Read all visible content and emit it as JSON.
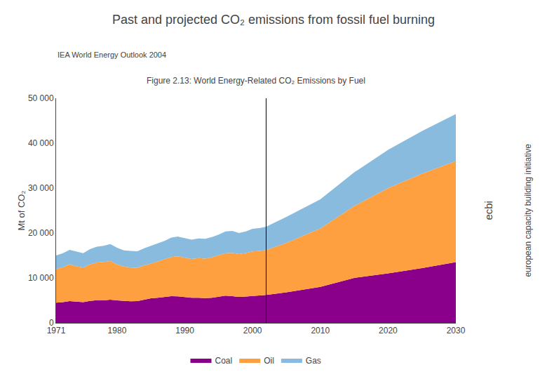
{
  "chart_data": {
    "type": "area",
    "stacked": true,
    "title": "Past and projected CO₂ emissions from fossil fuel burning",
    "subtitle": "IEA World Energy Outlook 2004",
    "caption": "Figure 2.13: World Energy-Related CO₂ Emissions by Fuel",
    "annotations": [
      "ecbi",
      "european capacity building initiative"
    ],
    "ylabel": "Mt of CO₂",
    "x": [
      1971,
      1972,
      1973,
      1974,
      1975,
      1976,
      1977,
      1978,
      1979,
      1980,
      1981,
      1982,
      1983,
      1984,
      1985,
      1986,
      1987,
      1988,
      1989,
      1990,
      1991,
      1992,
      1993,
      1994,
      1995,
      1996,
      1997,
      1998,
      1999,
      2000,
      2001,
      2002,
      2005,
      2010,
      2015,
      2020,
      2025,
      2030
    ],
    "series": [
      {
        "name": "Coal",
        "color": "#8B008B",
        "values": [
          4500,
          4600,
          4850,
          4700,
          4600,
          4900,
          5050,
          5000,
          5150,
          5000,
          4850,
          4800,
          4850,
          5200,
          5450,
          5600,
          5750,
          5950,
          5900,
          5750,
          5600,
          5600,
          5500,
          5600,
          5800,
          6050,
          5950,
          5800,
          5850,
          6000,
          6100,
          6200,
          6800,
          8000,
          10000,
          11000,
          12200,
          13500
        ]
      },
      {
        "name": "Oil",
        "color": "#FFA040",
        "values": [
          7500,
          7800,
          8200,
          7900,
          7700,
          8100,
          8400,
          8500,
          8650,
          8000,
          7700,
          7500,
          7400,
          7600,
          7750,
          8050,
          8350,
          8700,
          8900,
          8700,
          8600,
          8800,
          8800,
          9000,
          9200,
          9450,
          9650,
          9500,
          9700,
          9900,
          9900,
          10000,
          11000,
          13000,
          16000,
          19000,
          21000,
          22500
        ]
      },
      {
        "name": "Gas",
        "color": "#88BBDD",
        "values": [
          3000,
          3100,
          3200,
          3300,
          3200,
          3400,
          3500,
          3650,
          3750,
          3700,
          3600,
          3700,
          3700,
          3800,
          3950,
          4050,
          4150,
          4350,
          4400,
          4400,
          4300,
          4400,
          4400,
          4500,
          4650,
          4850,
          4850,
          4700,
          4800,
          5050,
          5100,
          5200,
          5800,
          6500,
          7500,
          8500,
          9500,
          10500
        ]
      }
    ],
    "vertical_line": 2002,
    "xlim": [
      1971,
      2030
    ],
    "xticks": [
      1971,
      1980,
      1990,
      2000,
      2010,
      2020,
      2030
    ],
    "ylim": [
      0,
      50000
    ],
    "yticks": [
      0,
      {
        "value": 10000,
        "label": "10 000"
      },
      {
        "value": 20000,
        "label": "20 000"
      },
      {
        "value": 30000,
        "label": "30 000"
      },
      {
        "value": 40000,
        "label": "40 000"
      },
      {
        "value": 50000,
        "label": "50 000"
      }
    ],
    "grid": false,
    "legend": "bottom"
  }
}
